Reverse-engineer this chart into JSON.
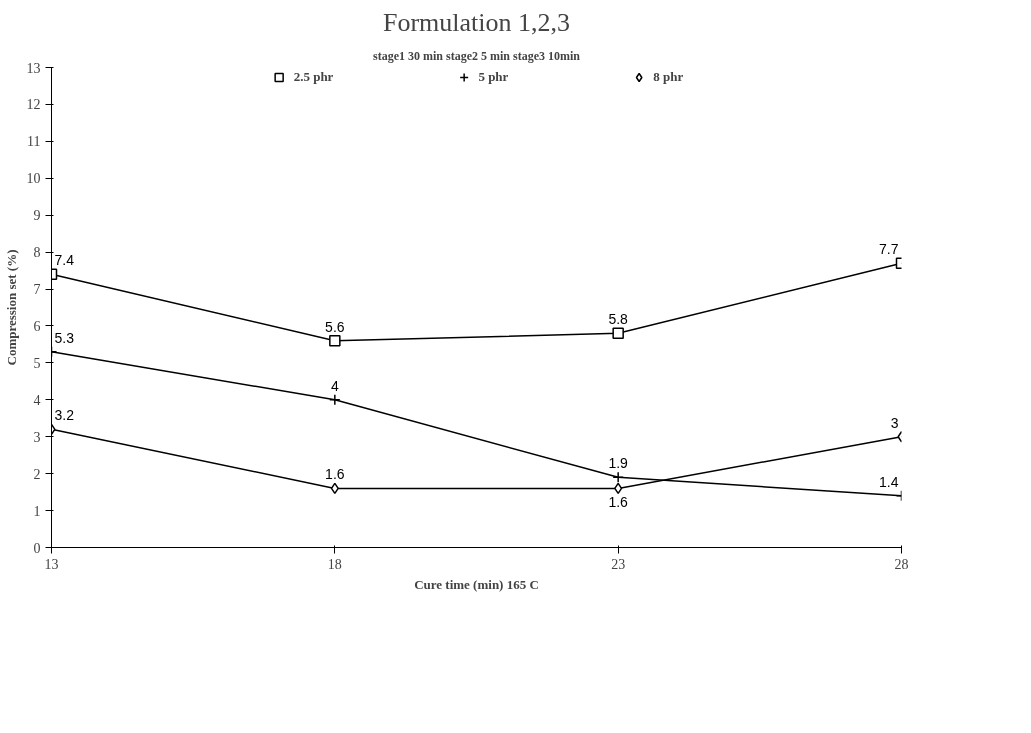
{
  "chart_data": {
    "type": "line",
    "title": "Formulation 1,2,3",
    "subtitle": "stage1 30 min stage2 5 min stage3 10min",
    "xlabel": "Cure time (min) 165 C",
    "ylabel": "Compression set (%)",
    "x": [
      13,
      18,
      23,
      28
    ],
    "xlim": [
      13,
      28
    ],
    "xticks": [
      13,
      18,
      23,
      28
    ],
    "ylim": [
      0,
      13
    ],
    "yticks": [
      0,
      1,
      2,
      3,
      4,
      5,
      6,
      7,
      8,
      9,
      10,
      11,
      12,
      13
    ],
    "series": [
      {
        "name": "2.5 phr",
        "color": "#000000",
        "marker": "square",
        "values": [
          7.4,
          5.6,
          5.8,
          7.7
        ]
      },
      {
        "name": "5 phr",
        "color": "#000000",
        "marker": "cross",
        "values": [
          5.3,
          4,
          1.9,
          1.4
        ]
      },
      {
        "name": "8 phr",
        "color": "#000000",
        "marker": "diamond",
        "values": [
          3.2,
          1.6,
          1.6,
          3
        ]
      }
    ],
    "data_labels": true,
    "grid": false,
    "legend": "top",
    "line_style": "solid"
  }
}
